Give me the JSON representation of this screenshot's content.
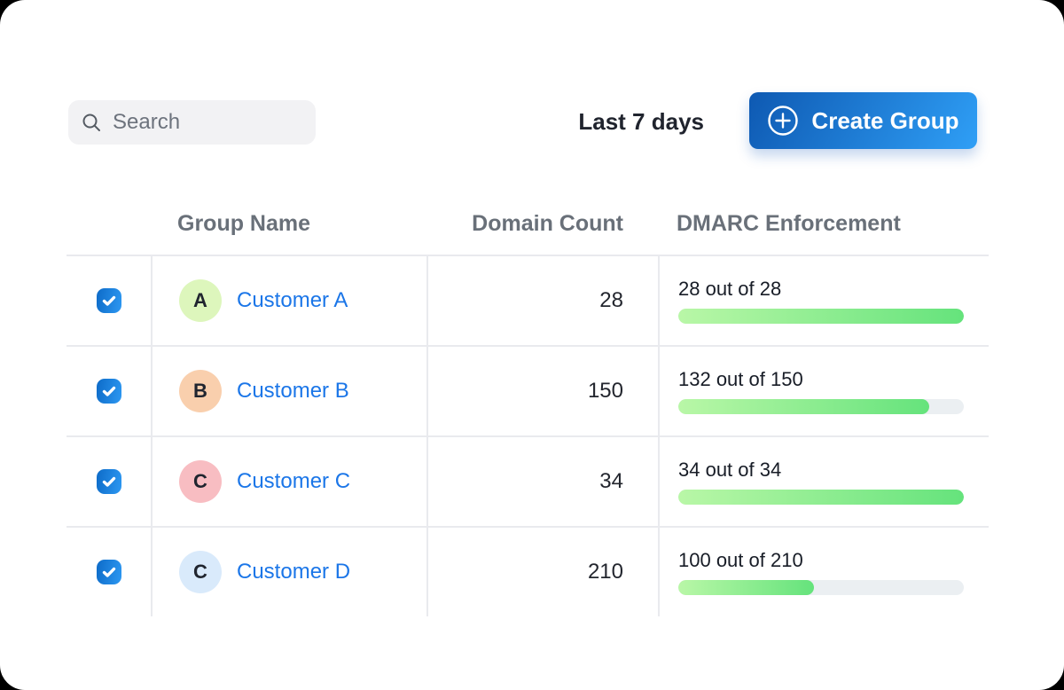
{
  "toolbar": {
    "search_placeholder": "Search",
    "date_range": "Last 7 days",
    "create_group_label": "Create Group"
  },
  "table": {
    "columns": [
      "Group Name",
      "Domain Count",
      "DMARC Enforcement"
    ],
    "rows": [
      {
        "selected": true,
        "avatar_letter": "A",
        "avatar_color": "#ddf6bc",
        "name": "Customer A",
        "domain_count": "28",
        "enforcement_label": "28 out of 28",
        "enforced": 28,
        "total": 28
      },
      {
        "selected": true,
        "avatar_letter": "B",
        "avatar_color": "#f9cfad",
        "name": "Customer B",
        "domain_count": "150",
        "enforcement_label": "132 out of 150",
        "enforced": 132,
        "total": 150
      },
      {
        "selected": true,
        "avatar_letter": "C",
        "avatar_color": "#f8bdc2",
        "name": "Customer C",
        "domain_count": "34",
        "enforcement_label": "34 out of 34",
        "enforced": 34,
        "total": 34
      },
      {
        "selected": true,
        "avatar_letter": "C",
        "avatar_color": "#d9eafb",
        "name": "Customer D",
        "domain_count": "210",
        "enforcement_label": "100 out of 210",
        "enforced": 100,
        "total": 210
      }
    ]
  },
  "colors": {
    "accent-blue": "#1b76e8",
    "button-blue-dark": "#0e59b2",
    "button-blue-light": "#2f9ff6",
    "checkbox-blue-dark": "#0d6bc8",
    "checkbox-blue-light": "#2d98f2",
    "green-light": "#b9f7a7",
    "green-dark": "#65e37c",
    "track-gray": "#ebeff2",
    "border-gray": "#e9eaee",
    "header-gray": "#697079"
  }
}
